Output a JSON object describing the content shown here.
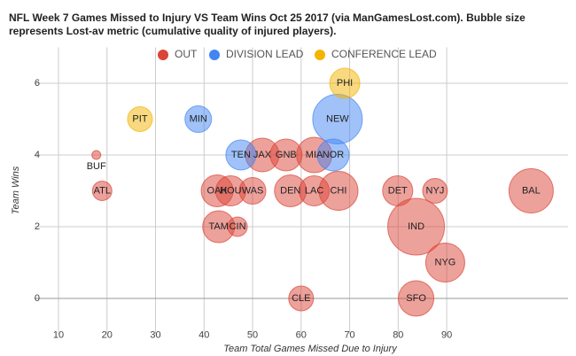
{
  "chart_data": {
    "type": "bubble",
    "title": "NFL Week 7 Games Missed to Injury VS Team Wins Oct 25 2017 (via ManGamesLost.com). Bubble size represents Lost-av metric (cumulative quality of injured players).",
    "x_label": "Team Total Games Missed Due to Injury",
    "y_label": "Team Wins",
    "xlim": [
      5,
      115
    ],
    "xticks": [
      10,
      20,
      30,
      40,
      50,
      60,
      70,
      80,
      90
    ],
    "ylim": [
      -1,
      7
    ],
    "yticks": [
      0,
      2,
      4,
      6
    ],
    "grid": true,
    "legend": "top",
    "series": [
      {
        "name": "OUT",
        "color": "#db4437",
        "labels": [
          "BUF",
          "ATL",
          "OAK",
          "HOU",
          "WAS",
          "DEN",
          "LAC",
          "CHI",
          "JAX",
          "GNB",
          "MIA",
          "DET",
          "NYJ",
          "BAL",
          "TAM",
          "CIN",
          "IND",
          "NYG",
          "CLE",
          "SFO"
        ],
        "x": [
          17.8,
          19,
          42.7,
          45.5,
          50,
          57.8,
          62.7,
          67.7,
          52,
          56.9,
          62.7,
          79.9,
          87.6,
          107.4,
          43,
          46.9,
          83.7,
          89.7,
          60,
          83.7
        ],
        "values": [
          4,
          3,
          3,
          3,
          3,
          3,
          3,
          3,
          4,
          4,
          4,
          3,
          3,
          3,
          2,
          2,
          2,
          1,
          0,
          0
        ],
        "sizes": [
          5,
          11,
          18,
          17,
          15,
          18,
          17,
          22,
          19,
          18,
          20,
          17,
          14,
          25,
          18,
          11,
          32,
          22,
          14,
          20
        ]
      },
      {
        "name": "DIVISION LEAD",
        "color": "#4285f4",
        "labels": [
          "MIN",
          "TEN",
          "NEW",
          "NOR"
        ],
        "x": [
          38.8,
          47.6,
          67.5,
          66.6
        ],
        "values": [
          5,
          4,
          5,
          4
        ],
        "sizes": [
          15,
          17,
          28,
          18
        ]
      },
      {
        "name": "CONFERENCE LEAD",
        "color": "#f4b400",
        "labels": [
          "PIT",
          "PHI"
        ],
        "x": [
          26.8,
          69
        ],
        "values": [
          5,
          6
        ],
        "sizes": [
          14,
          17
        ]
      }
    ]
  }
}
